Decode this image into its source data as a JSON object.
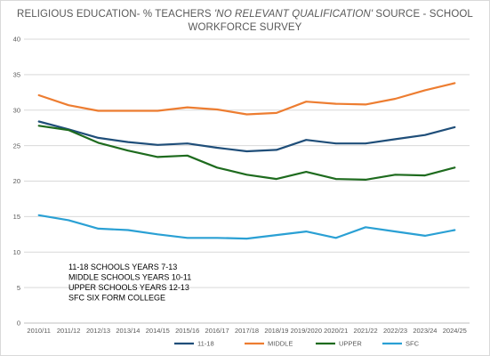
{
  "chart_data": {
    "type": "line",
    "title": {
      "prefix": "RELIGIOUS EDUCATION- % TEACHERS ",
      "italic": "'NO RELEVANT QUALIFICATION'",
      "suffix": "  SOURCE - SCHOOL",
      "line2": "WORKFORCE SURVEY"
    },
    "xlabel": "",
    "ylabel": "",
    "ylim": [
      0,
      40
    ],
    "yticks": [
      0,
      5,
      10,
      15,
      20,
      25,
      30,
      35,
      40
    ],
    "grid": true,
    "legend_position": "bottom",
    "categories": [
      "2010/11",
      "2011/12",
      "2012/13",
      "2013/14",
      "2014/15",
      "2015/16",
      "2016/17",
      "2017/18",
      "2018/19",
      "2019/2020",
      "2020/21",
      "2021/22",
      "2022/23",
      "2023/24",
      "2024/25"
    ],
    "series": [
      {
        "name": "11-18",
        "color": "#1f4e79",
        "values": [
          28.4,
          27.3,
          26.1,
          25.5,
          25.1,
          25.3,
          24.7,
          24.2,
          24.4,
          25.8,
          25.3,
          25.3,
          25.9,
          26.5,
          27.6
        ]
      },
      {
        "name": "MIDDLE",
        "color": "#ed7d31",
        "values": [
          32.1,
          30.7,
          29.9,
          29.9,
          29.9,
          30.4,
          30.1,
          29.4,
          29.6,
          31.2,
          30.9,
          30.8,
          31.6,
          32.8,
          33.8
        ]
      },
      {
        "name": "UPPER",
        "color": "#1e6b1e",
        "values": [
          27.8,
          27.2,
          25.4,
          24.3,
          23.4,
          23.6,
          21.9,
          20.9,
          20.3,
          21.3,
          20.3,
          20.2,
          20.9,
          20.8,
          21.9
        ]
      },
      {
        "name": "SFC",
        "color": "#2aa0d4",
        "values": [
          15.2,
          14.5,
          13.3,
          13.1,
          12.5,
          12.0,
          12.0,
          11.9,
          12.4,
          12.9,
          12.0,
          13.5,
          12.9,
          12.3,
          13.1
        ]
      }
    ],
    "annotations": [
      "11-18 SCHOOLS     YEARS 7-13",
      "MIDDLE SCHOOLS YEARS 10-11",
      "UPPER SCHOOLS    YEARS 12-13",
      "SFC SIX FORM COLLEGE"
    ]
  }
}
